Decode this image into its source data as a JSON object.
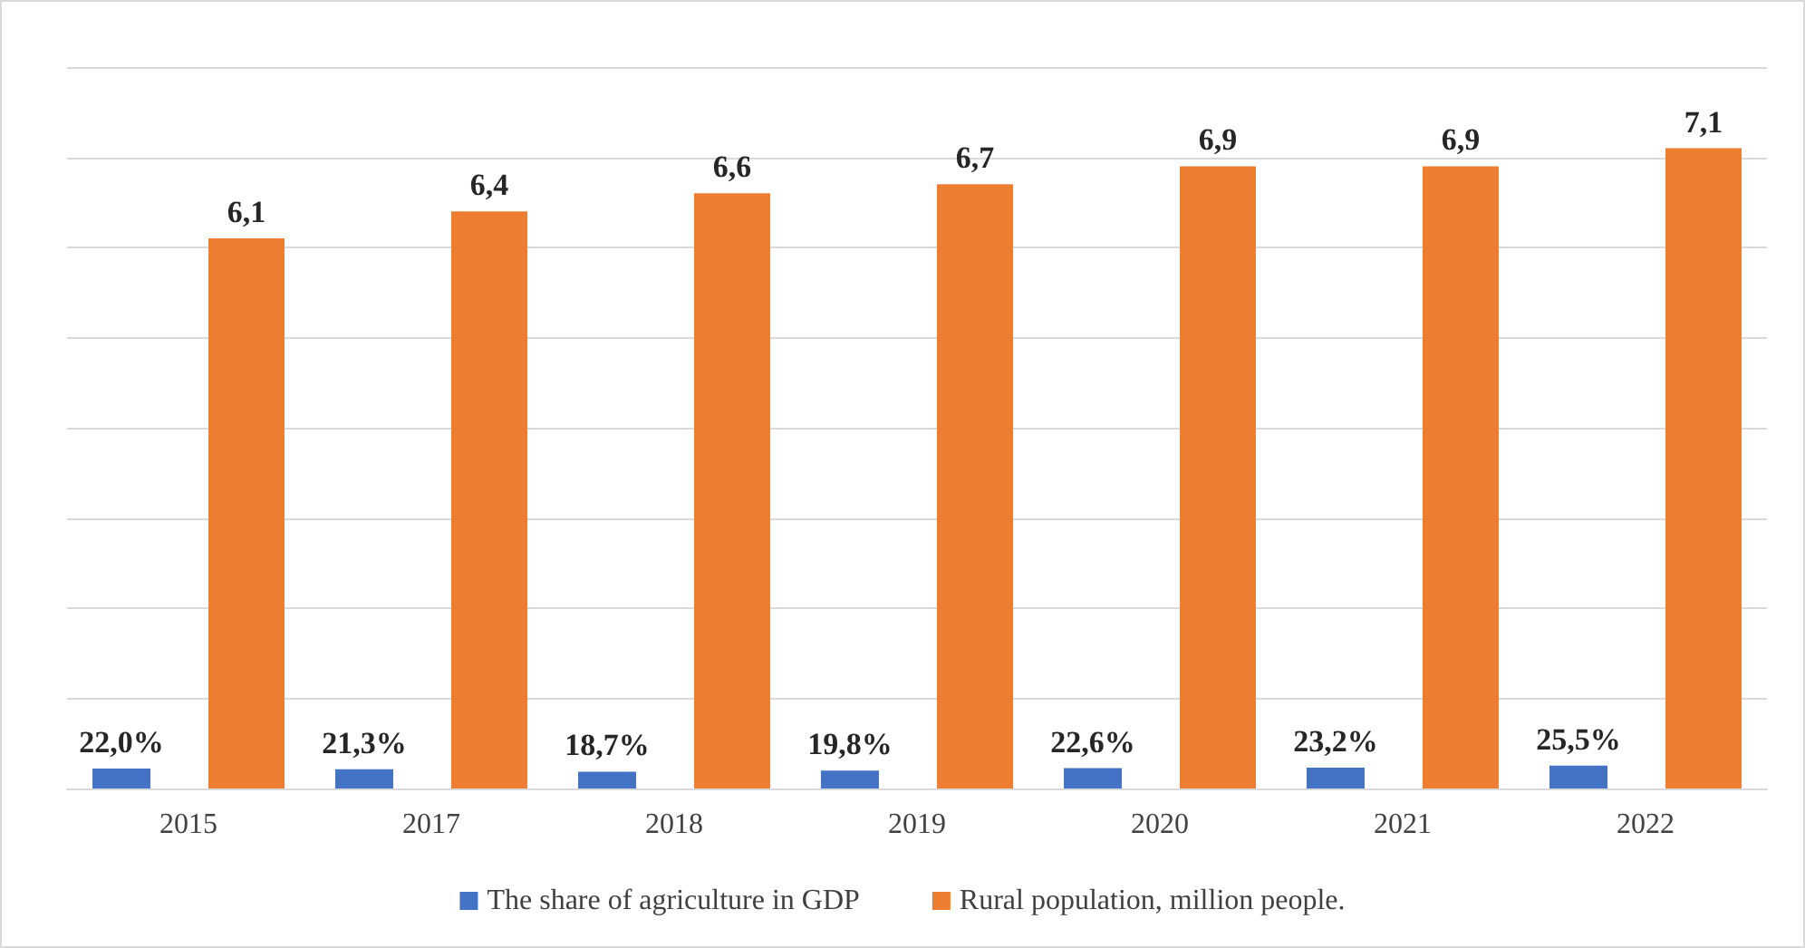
{
  "chart_data": {
    "type": "bar",
    "categories": [
      "2015",
      "2017",
      "2018",
      "2019",
      "2020",
      "2021",
      "2022"
    ],
    "series": [
      {
        "name": "The share of agriculture in GDP",
        "color": "#4472c4",
        "axis": "y2",
        "values": [
          22.0,
          21.3,
          18.7,
          19.8,
          22.6,
          23.2,
          25.5
        ],
        "value_labels": [
          "22,0%",
          "21,3%",
          "18,7%",
          "19,8%",
          "22,6%",
          "23,2%",
          "25,5%"
        ]
      },
      {
        "name": "Rural population, million people.",
        "color": "#ed7d31",
        "values": [
          6.1,
          6.4,
          6.6,
          6.7,
          6.9,
          6.9,
          7.1
        ],
        "value_labels": [
          "6,1",
          "6,4",
          "6,6",
          "6,7",
          "6,9",
          "6,9",
          "7,1"
        ]
      }
    ],
    "ylim": [
      0,
      8
    ],
    "yticks": [
      {
        "value": 0,
        "label": null
      },
      {
        "value": 1,
        "label": null
      },
      {
        "value": 2,
        "label": null
      },
      {
        "value": 3,
        "label": null
      },
      {
        "value": 4,
        "label": null
      },
      {
        "value": 5,
        "label": null
      },
      {
        "value": 6,
        "label": null
      },
      {
        "value": 7,
        "label": null
      },
      {
        "value": 8,
        "label": null
      }
    ],
    "y2lim": [
      0,
      800
    ],
    "grid": "y",
    "legend": "bottom",
    "tick_labels": "x"
  }
}
